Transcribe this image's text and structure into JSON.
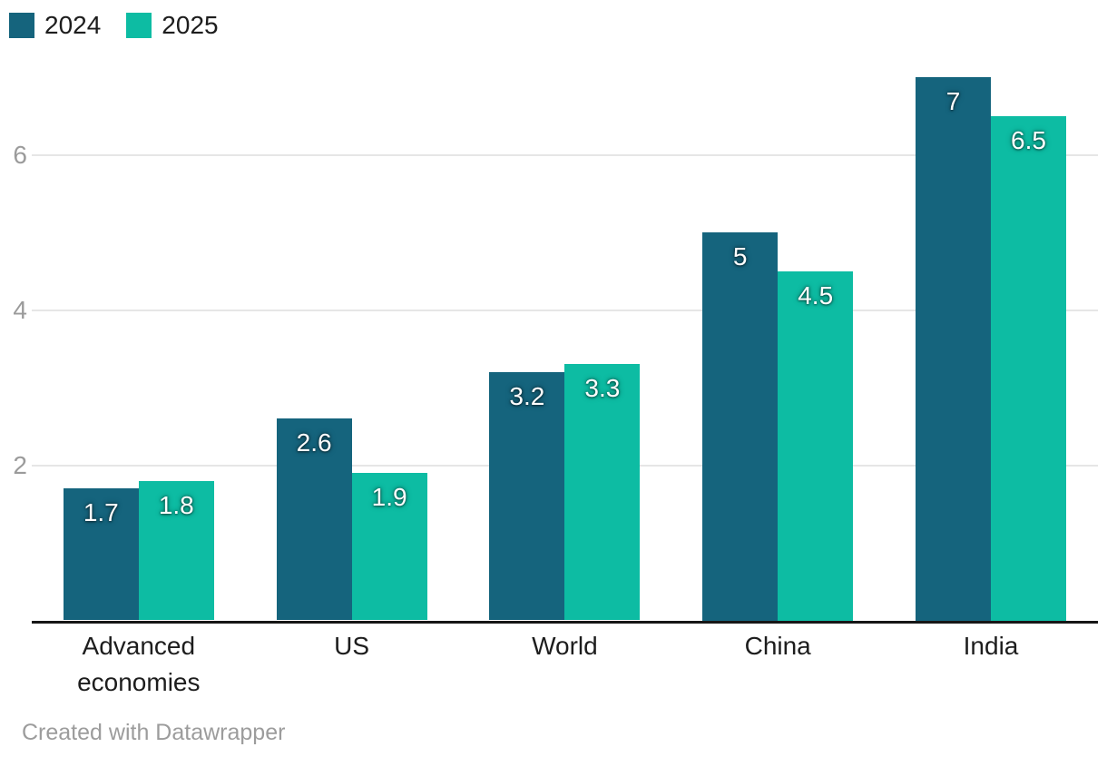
{
  "chart_data": {
    "type": "bar",
    "categories": [
      "Advanced economies",
      "US",
      "World",
      "China",
      "India"
    ],
    "series": [
      {
        "name": "2024",
        "color": "#15647d",
        "values": [
          1.7,
          2.6,
          3.2,
          5,
          7
        ],
        "labels": [
          "1.7",
          "2.6",
          "3.2",
          "5",
          "7"
        ]
      },
      {
        "name": "2025",
        "color": "#0dbca3",
        "values": [
          1.8,
          1.9,
          3.3,
          4.5,
          6.5
        ],
        "labels": [
          "1.8",
          "1.9",
          "3.3",
          "4.5",
          "6.5"
        ]
      }
    ],
    "title": "",
    "xlabel": "",
    "ylabel": "",
    "ylim": [
      0,
      7.2
    ],
    "yticks": [
      2,
      4,
      6
    ],
    "ytick_labels": [
      "2",
      "4",
      "6"
    ],
    "grid": "horizontal",
    "legend_position": "top-left",
    "value_labels_shown": true
  },
  "colors": {
    "series_2024": "#15647d",
    "series_2025": "#0dbca3",
    "gridline": "#e6e6e6",
    "axis_line": "#161616",
    "tick_text": "#9b9b9b",
    "label_text": "#1d1d1d",
    "value_text": "#ffffff",
    "background": "#ffffff"
  },
  "footer": {
    "credit": "Created with Datawrapper"
  }
}
